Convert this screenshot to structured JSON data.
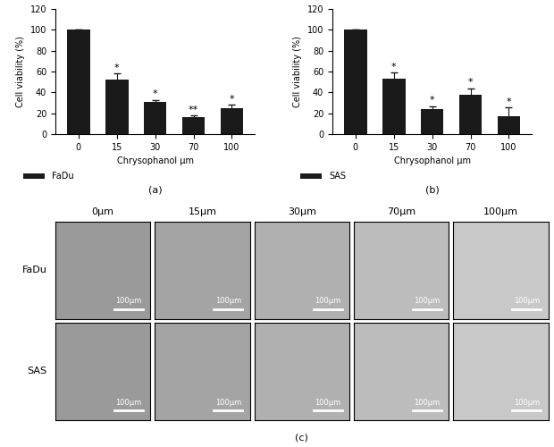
{
  "chart_data": [
    {
      "type": "bar",
      "caption": "(a)",
      "x_label": "Chrysophanol μm",
      "y_label": "Cell viability (%)",
      "categories": [
        "0",
        "15",
        "30",
        "70",
        "100"
      ],
      "series": [
        {
          "name": "FaDu",
          "color": "#1a1a1a",
          "values": [
            100,
            52,
            31,
            16,
            25
          ],
          "errors": [
            0,
            6,
            2,
            2,
            3
          ],
          "significance": [
            null,
            "*",
            "*",
            "**",
            "*"
          ]
        }
      ],
      "ylim": [
        0,
        120
      ],
      "yticks": [
        0,
        20,
        40,
        60,
        80,
        100,
        120
      ],
      "legend": "upper left"
    },
    {
      "type": "bar",
      "caption": "(b)",
      "x_label": "Chrysophanol μm",
      "y_label": "Cell viability (%)",
      "categories": [
        "0",
        "15",
        "30",
        "70",
        "100"
      ],
      "series": [
        {
          "name": "SAS",
          "color": "#1a1a1a",
          "values": [
            100,
            53,
            24,
            38,
            17
          ],
          "errors": [
            0,
            6,
            3,
            6,
            9
          ],
          "significance": [
            null,
            "*",
            "*",
            "*",
            "*"
          ]
        }
      ],
      "ylim": [
        0,
        120
      ],
      "yticks": [
        0,
        20,
        40,
        60,
        80,
        100,
        120
      ],
      "legend": "upper left"
    }
  ],
  "images": {
    "caption": "(c)",
    "columns": [
      "0μm",
      "15μm",
      "30μm",
      "70μm",
      "100μm"
    ],
    "rows": [
      "FaDu",
      "SAS"
    ],
    "scale_bar": "100μm"
  }
}
